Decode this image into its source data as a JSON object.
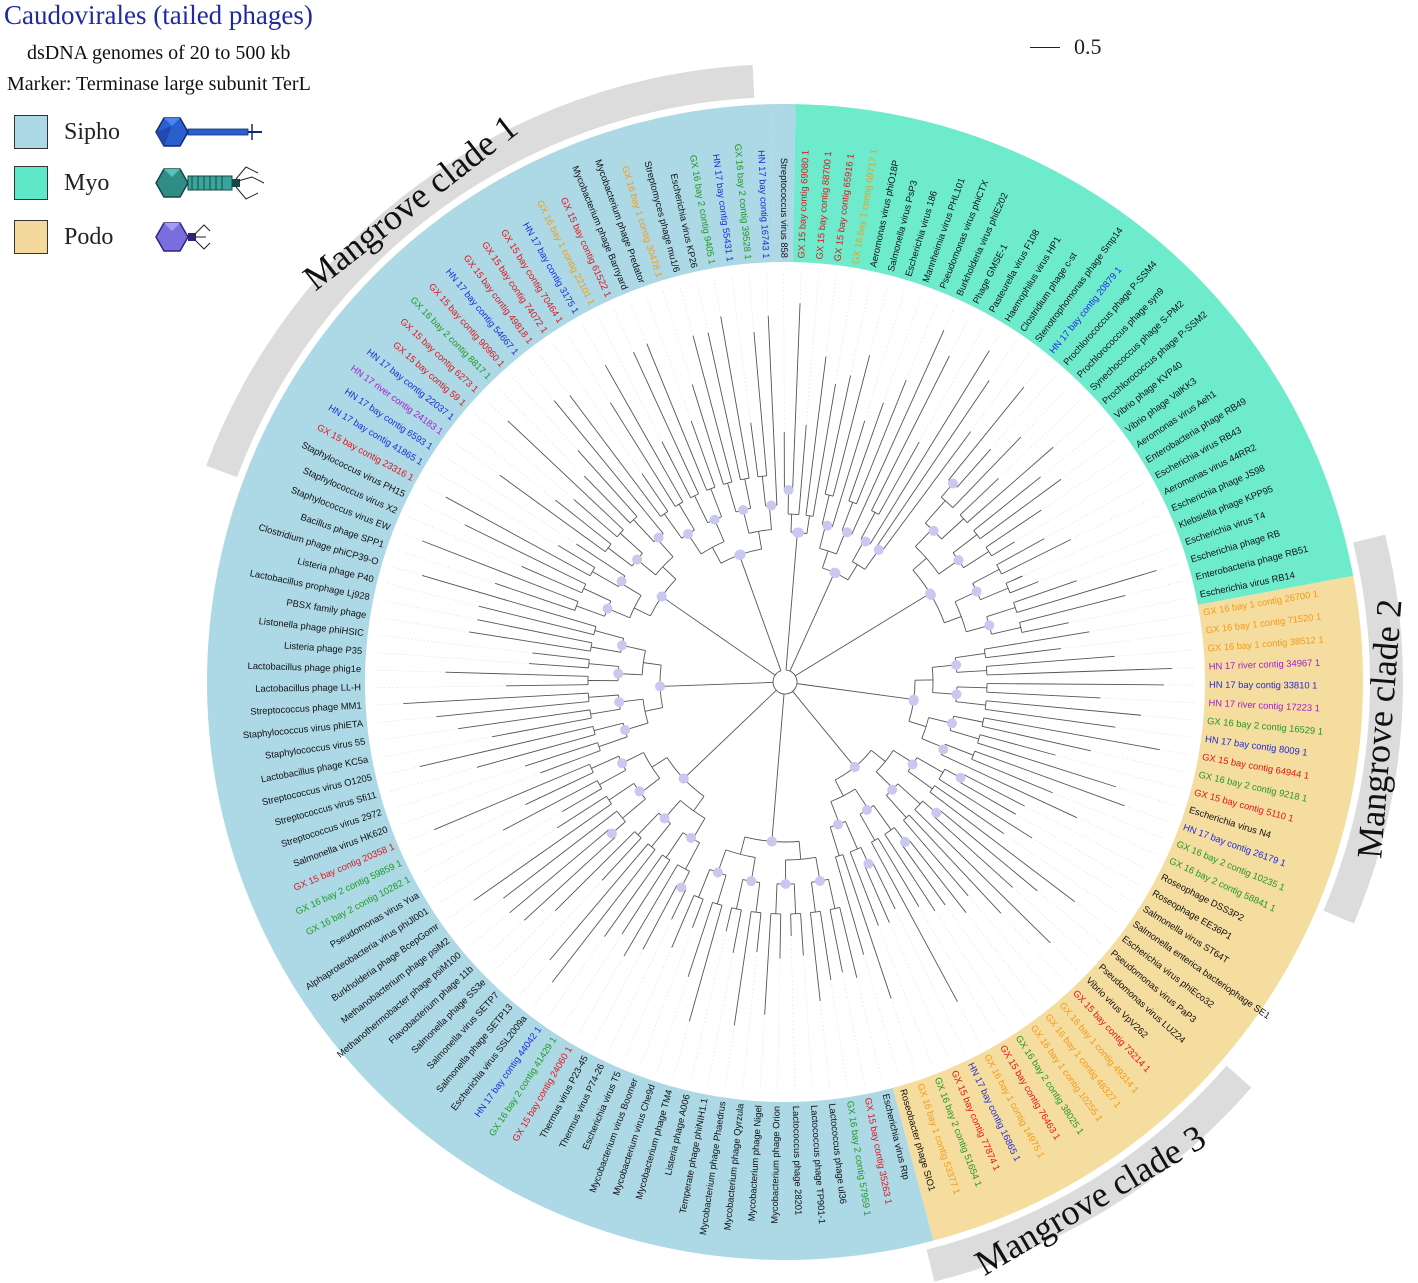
{
  "title": "Caudovirales (tailed phages)",
  "subtitle_line1": "dsDNA genomes of 20 to 500 kb",
  "subtitle_line2": "Marker: Terminase large subunit TerL",
  "scale_bar_label": "0.5",
  "legend": [
    {
      "label": "Sipho",
      "color": "#add8e6",
      "icon": "siphovirus-phage-icon"
    },
    {
      "label": "Myo",
      "color": "#5ee8c8",
      "icon": "myovirus-phage-icon"
    },
    {
      "label": "Podo",
      "color": "#f3da9c",
      "icon": "podovirus-phage-icon"
    }
  ],
  "colors": {
    "sipho": "#add8e6",
    "myo": "#6eebcd",
    "podo": "#f5dc9f",
    "clade_arc": "#dcdcdc",
    "node": "#c8c8f0",
    "branch": "#555555",
    "black": "#111111",
    "red": "#e0151b",
    "green": "#1f9a1f",
    "blue": "#1f2bd8",
    "orange": "#f59a16",
    "purple": "#a020d0"
  },
  "clades": [
    {
      "label": "Mangrove clade 1"
    },
    {
      "label": "Mangrove clade 2"
    },
    {
      "label": "Mangrove clade 3"
    }
  ],
  "leaves": [
    {
      "t": "Streptococcus virus 858",
      "c": "black"
    },
    {
      "t": "GX 15 bay contig 69080 1",
      "c": "red"
    },
    {
      "t": "GX 15 bay contig 88700 1",
      "c": "red"
    },
    {
      "t": "GX 15 bay contig 65916 1",
      "c": "red"
    },
    {
      "t": "GX 16 bay 1 contig 69717 1",
      "c": "orange"
    },
    {
      "t": "Aeromonas virus phiO18P",
      "c": "black"
    },
    {
      "t": "Salmonella virus PsP3",
      "c": "black"
    },
    {
      "t": "Escherichia virus 186",
      "c": "black"
    },
    {
      "t": "Mannheimia virus PHL101",
      "c": "black"
    },
    {
      "t": "Pseudomonas virus phiCTX",
      "c": "black"
    },
    {
      "t": "Burkholderia virus phiE202",
      "c": "black"
    },
    {
      "t": "Phage GMSE-1",
      "c": "black"
    },
    {
      "t": "Pasteurella virus F108",
      "c": "black"
    },
    {
      "t": "Haemophilus virus HP1",
      "c": "black"
    },
    {
      "t": "Clostridium phage c-st",
      "c": "black"
    },
    {
      "t": "Stenotrophomonas phage Smp14",
      "c": "black"
    },
    {
      "t": "HN 17 bay contig 20879 1",
      "c": "blue"
    },
    {
      "t": "Prochlorococcus phage P-SSM4",
      "c": "black"
    },
    {
      "t": "Prochlorococcus phage syn9",
      "c": "black"
    },
    {
      "t": "Synechococcus phage S-PM2",
      "c": "black"
    },
    {
      "t": "Prochlorococcus phage P-SSM2",
      "c": "black"
    },
    {
      "t": "Vibrio phage KVP40",
      "c": "black"
    },
    {
      "t": "Vibrio phage ValKK3",
      "c": "black"
    },
    {
      "t": "Aeromonas virus Aeh1",
      "c": "black"
    },
    {
      "t": "Enterobacteria phage RB49",
      "c": "black"
    },
    {
      "t": "Escherichia virus RB43",
      "c": "black"
    },
    {
      "t": "Aeromonas virus 44RR2",
      "c": "black"
    },
    {
      "t": "Escherichia phage JS98",
      "c": "black"
    },
    {
      "t": "Klebsiella phage KPP95",
      "c": "black"
    },
    {
      "t": "Escherichia virus T4",
      "c": "black"
    },
    {
      "t": "Escherichia phage RB",
      "c": "black"
    },
    {
      "t": "Enterobacteria phage RB51",
      "c": "black"
    },
    {
      "t": "Escherichia virus RB14",
      "c": "black"
    },
    {
      "t": "GX 16 bay 1 contig 26700 1",
      "c": "orange"
    },
    {
      "t": "GX 16 bay 1 contig 71520 1",
      "c": "orange"
    },
    {
      "t": "GX 16 bay 1 contig 38512 1",
      "c": "orange"
    },
    {
      "t": "HN 17 river contig 34967 1",
      "c": "purple"
    },
    {
      "t": "HN 17 bay contig 33810 1",
      "c": "blue"
    },
    {
      "t": "HN 17 river contig 17223 1",
      "c": "purple"
    },
    {
      "t": "GX 16 bay 2 contig 16529 1",
      "c": "green"
    },
    {
      "t": "HN 17 bay contig 8009 1",
      "c": "blue"
    },
    {
      "t": "GX 15 bay contig 64944 1",
      "c": "red"
    },
    {
      "t": "GX 16 bay 2 contig 9218 1",
      "c": "green"
    },
    {
      "t": "GX 15 bay contig 5110 1",
      "c": "red"
    },
    {
      "t": "Escherichia virus N4",
      "c": "black"
    },
    {
      "t": "HN 17 bay contig 26179 1",
      "c": "blue"
    },
    {
      "t": "GX 16 bay 2 contig 10235 1",
      "c": "green"
    },
    {
      "t": "GX 16 bay 2 contig 58841 1",
      "c": "green"
    },
    {
      "t": "Roseophage DSS3P2",
      "c": "black"
    },
    {
      "t": "Roseophage EE36P1",
      "c": "black"
    },
    {
      "t": "Salmonella virus ST64T",
      "c": "black"
    },
    {
      "t": "Salmonella enterica bacteriophage SE1",
      "c": "black"
    },
    {
      "t": "Escherichia virus phiEco32",
      "c": "black"
    },
    {
      "t": "Pseudomonas virus PaP3",
      "c": "black"
    },
    {
      "t": "Pseudomonas virus LUZ24",
      "c": "black"
    },
    {
      "t": "Vibrio virus VpV262",
      "c": "black"
    },
    {
      "t": "GX 15 bay contig 73214 1",
      "c": "red"
    },
    {
      "t": "GX 16 bay 1 contig 49314 1",
      "c": "orange"
    },
    {
      "t": "GX 16 bay 1 contig 48327 1",
      "c": "orange"
    },
    {
      "t": "GX 16 bay 1 contig 10255 1",
      "c": "orange"
    },
    {
      "t": "GX 16 bay 2 contig 38025 1",
      "c": "green"
    },
    {
      "t": "GX 15 bay contig 76463 1",
      "c": "red"
    },
    {
      "t": "GX 16 bay 1 contig 14975 1",
      "c": "orange"
    },
    {
      "t": "HN 17 bay contig 16865 1",
      "c": "blue"
    },
    {
      "t": "GX 15 bay contig 77874 1",
      "c": "red"
    },
    {
      "t": "GX 16 bay 2 contig 51654 1",
      "c": "green"
    },
    {
      "t": "GX 16 bay 1 contig 53377 1",
      "c": "orange"
    },
    {
      "t": "Roseobacter phage SIO1",
      "c": "black"
    },
    {
      "t": "Escherichia virus Rtp",
      "c": "black"
    },
    {
      "t": "GX 15 bay contig 35263 1",
      "c": "red"
    },
    {
      "t": "GX 16 bay 2 contig 57959 1",
      "c": "green"
    },
    {
      "t": "Lactococcus phage ul36",
      "c": "black"
    },
    {
      "t": "Lactococcus phage TP901-1",
      "c": "black"
    },
    {
      "t": "Lactococcus phage 28201",
      "c": "black"
    },
    {
      "t": "Mycobacterium phage Orion",
      "c": "black"
    },
    {
      "t": "Mycobacterium phage Nigel",
      "c": "black"
    },
    {
      "t": "Mycobacterium phage Qyrzula",
      "c": "black"
    },
    {
      "t": "Mycobacterium phage Phaedrus",
      "c": "black"
    },
    {
      "t": "Temperate phage phiNIH1.1",
      "c": "black"
    },
    {
      "t": "Listeria phage A006",
      "c": "black"
    },
    {
      "t": "Mycobacterium phage TM4",
      "c": "black"
    },
    {
      "t": "Mycobacterium virus Che9d",
      "c": "black"
    },
    {
      "t": "Mycobacterium virus Boomer",
      "c": "black"
    },
    {
      "t": "Escherichia virus T5",
      "c": "black"
    },
    {
      "t": "Thermus virus P74-26",
      "c": "black"
    },
    {
      "t": "Thermus virus P23-45",
      "c": "black"
    },
    {
      "t": "GX 15 bay contig 24060 1",
      "c": "red"
    },
    {
      "t": "GX 16 bay 2 contig 41429 1",
      "c": "green"
    },
    {
      "t": "HN 17 bay contig 44042 1",
      "c": "blue"
    },
    {
      "t": "Escherichia virus SSL2009a",
      "c": "black"
    },
    {
      "t": "Salmonella phage SETP13",
      "c": "black"
    },
    {
      "t": "Salmonella virus SETP7",
      "c": "black"
    },
    {
      "t": "Salmonella phage SS3e",
      "c": "black"
    },
    {
      "t": "Flavobacterium phage 11b",
      "c": "black"
    },
    {
      "t": "Methanothermobacter phage psiM100",
      "c": "black"
    },
    {
      "t": "Methanobacterium phage psiM2",
      "c": "black"
    },
    {
      "t": "Burkholderia phage BcepGomr",
      "c": "black"
    },
    {
      "t": "Alphaproteobacteria virus phiJl001",
      "c": "black"
    },
    {
      "t": "Pseudomonas virus Yua",
      "c": "black"
    },
    {
      "t": "GX 16 bay 2 contig 10282 1",
      "c": "green"
    },
    {
      "t": "GX 16 bay 2 contig 59859 1",
      "c": "green"
    },
    {
      "t": "GX 15 bay contig 20358 1",
      "c": "red"
    },
    {
      "t": "Salmonella virus HK620",
      "c": "black"
    },
    {
      "t": "Streptococcus virus 2972",
      "c": "black"
    },
    {
      "t": "Streptococcus virus Sfi11",
      "c": "black"
    },
    {
      "t": "Streptococcus virus O1205",
      "c": "black"
    },
    {
      "t": "Lactobacillus phage KC5a",
      "c": "black"
    },
    {
      "t": "Staphylococcus virus 55",
      "c": "black"
    },
    {
      "t": "Staphylococcus virus phiETA",
      "c": "black"
    },
    {
      "t": "Streptococcus phage MM1",
      "c": "black"
    },
    {
      "t": "Lactobacillus phage LL-H",
      "c": "black"
    },
    {
      "t": "Lactobacillus phage phig1e",
      "c": "black"
    },
    {
      "t": "Listeria phage P35",
      "c": "black"
    },
    {
      "t": "Listonella phage phiHSIC",
      "c": "black"
    },
    {
      "t": "PBSX family phage",
      "c": "black"
    },
    {
      "t": "Lactobacillus prophage Lj928",
      "c": "black"
    },
    {
      "t": "Listeria phage P40",
      "c": "black"
    },
    {
      "t": "Clostridium phage phiCP39-O",
      "c": "black"
    },
    {
      "t": "Bacillus phage SPP1",
      "c": "black"
    },
    {
      "t": "Staphylococcus virus EW",
      "c": "black"
    },
    {
      "t": "Staphylococcus virus X2",
      "c": "black"
    },
    {
      "t": "Staphylococcus virus PH15",
      "c": "black"
    },
    {
      "t": "GX 15 bay contig 23316 1",
      "c": "red"
    },
    {
      "t": "HN 17 bay contig 41865 1",
      "c": "blue"
    },
    {
      "t": "HN 17 bay contig 6593 1",
      "c": "blue"
    },
    {
      "t": "HN 17 river contig 24183 1",
      "c": "purple"
    },
    {
      "t": "HN 17 bay contig 22037 1",
      "c": "blue"
    },
    {
      "t": "GX 15 bay contig 59 1",
      "c": "red"
    },
    {
      "t": "GX 15 bay contig 6273 1",
      "c": "red"
    },
    {
      "t": "GX 16 bay 2 contig 8817 1",
      "c": "green"
    },
    {
      "t": "GX 15 bay contig 90960 1",
      "c": "red"
    },
    {
      "t": "HN 17 bay contig 54667 1",
      "c": "blue"
    },
    {
      "t": "GX 15 bay contig 49818 1",
      "c": "red"
    },
    {
      "t": "GX 15 bay contig 74072 1",
      "c": "red"
    },
    {
      "t": "GX 15 bay contig 70464 1",
      "c": "red"
    },
    {
      "t": "HN 17 bay contig 3175 1",
      "c": "blue"
    },
    {
      "t": "GX 16 bay 1 contig 22101 1",
      "c": "orange"
    },
    {
      "t": "GX 15 bay contig 61522 1",
      "c": "red"
    },
    {
      "t": "Mycobacterium phage Barnyard",
      "c": "black"
    },
    {
      "t": "Mycobacterium phage Predator",
      "c": "black"
    },
    {
      "t": "GX 16 bay 1 contig 30478 1",
      "c": "orange"
    },
    {
      "t": "Streptomyces phage mu1/6",
      "c": "black"
    },
    {
      "t": "Escherichia virus KP26",
      "c": "black"
    },
    {
      "t": "GX 16 bay 2 contig 9405 1",
      "c": "green"
    },
    {
      "t": "HN 17 bay contig 55431 1",
      "c": "blue"
    },
    {
      "t": "GX 16 bay 2 contig 39528 1",
      "c": "green"
    },
    {
      "t": "HN 17 bay contig 16743 1",
      "c": "blue"
    }
  ]
}
